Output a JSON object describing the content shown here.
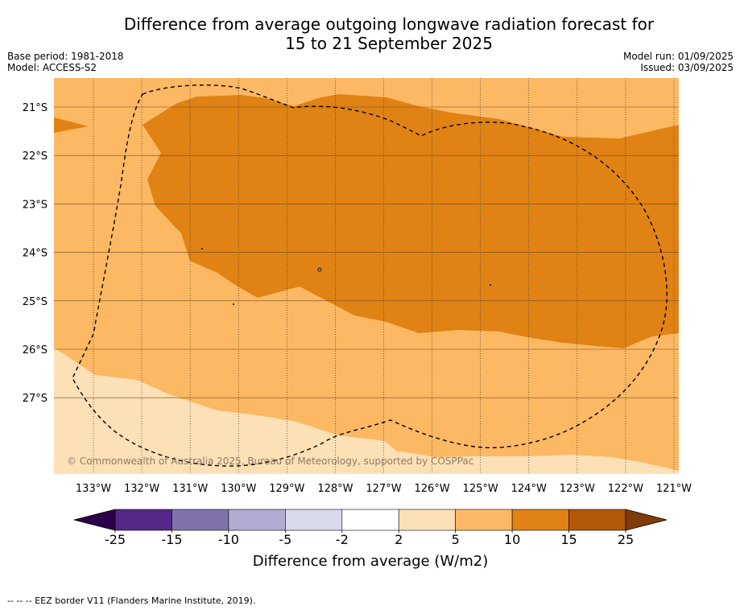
{
  "title": "Difference from average outgoing longwave radiation forecast for\n15 to 21 September 2025",
  "base_period": "Base period: 1981-2018",
  "model": "Model: ACCESS-S2",
  "model_run": "Model run: 01/09/2025",
  "issued": "Issued: 03/09/2025",
  "copyright": "© Commonwealth of Australia 2025, Bureau of Meteorology, supported by COSPPac",
  "eez_note": "-- -- -- EEZ border V11 (Flanders Marine Institute, 2019).",
  "colorbar_label": "Difference from average (W/m2)",
  "lon_ticks": [
    "133°W",
    "132°W",
    "131°W",
    "130°W",
    "129°W",
    "128°W",
    "127°W",
    "126°W",
    "125°W",
    "124°W",
    "123°W",
    "122°W",
    "121°W"
  ],
  "lat_ticks": [
    "21°S",
    "22°S",
    "23°S",
    "24°S",
    "25°S",
    "26°S",
    "27°S"
  ],
  "colorbar_ticks": [
    "-25",
    "-15",
    "-10",
    "-5",
    "-2",
    "2",
    "5",
    "10",
    "15",
    "25"
  ],
  "colorbar_colors": [
    "#2d004b",
    "#542788",
    "#8073ac",
    "#b2abd2",
    "#d8daeb",
    "#ffffff",
    "#fee0b6",
    "#fdb863",
    "#e08214",
    "#b35806",
    "#7f3b08"
  ],
  "colors": {
    "light_cream": "#fee0b6",
    "light_orange": "#fdb863",
    "mid_orange": "#e08214",
    "gridline": "#333333"
  },
  "chart_data": {
    "type": "heatmap",
    "title": "Difference from average outgoing longwave radiation forecast for 15 to 21 September 2025",
    "lon_range": [
      -133.8,
      -120.9
    ],
    "lat_range": [
      -29.3,
      -20.6
    ],
    "levels": [
      -25,
      -15,
      -10,
      -5,
      -2,
      2,
      5,
      10,
      15,
      25
    ],
    "units": "W/m2",
    "regions": [
      {
        "category": "5 to 10",
        "location": "background over most of the domain"
      },
      {
        "category": "10 to 15",
        "location": "central band from about 21°S to 26°S, 132°W to 121°W"
      },
      {
        "category": "2 to 5",
        "location": "south-west corner, south of about 26°S"
      }
    ],
    "overlay": "EEZ border (dashed)"
  }
}
